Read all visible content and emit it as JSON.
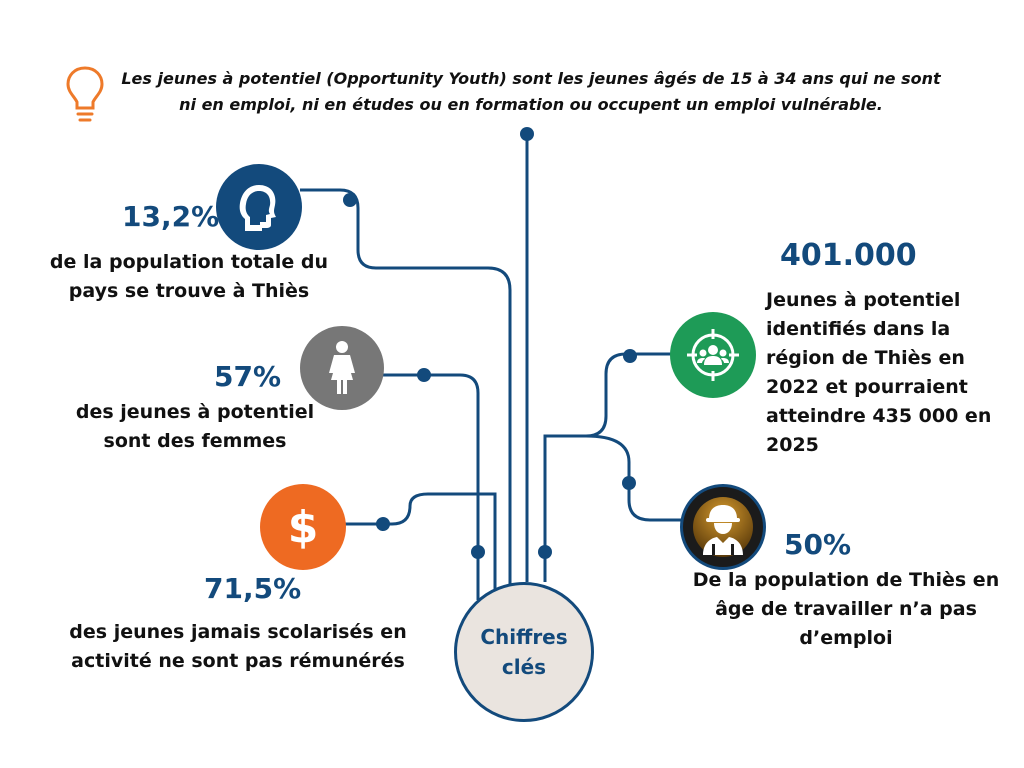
{
  "intro": {
    "text": "Les jeunes à potentiel (Opportunity Youth) sont les jeunes âgés de 15 à 34 ans qui ne sont ni en emploi, ni en études ou en formation ou occupent un emploi vulnérable."
  },
  "center": {
    "label": "Chiffres clés"
  },
  "stats": [
    {
      "value": "13,2%",
      "text": "de la population totale du pays se trouve à Thiès",
      "icon": "head-profile-icon",
      "color": "#134a7c"
    },
    {
      "value": "57%",
      "text": "des jeunes à potentiel sont des femmes",
      "icon": "woman-icon",
      "color": "#777777"
    },
    {
      "value": "71,5%",
      "text": "des jeunes jamais scolarisés en activité ne sont pas rémunérés",
      "icon": "dollar-icon",
      "color": "#ee6a22"
    },
    {
      "value": "401.000",
      "text": "Jeunes à potentiel identifiés dans la région de Thiès en 2022 et pourraient atteindre 435 000 en 2025",
      "icon": "target-group-icon",
      "color": "#1e9b57"
    },
    {
      "value": "50%",
      "text": "De la population de Thiès en âge de travailler n’a pas d’emploi",
      "icon": "worker-helmet-icon",
      "color": "#8a5a14"
    }
  ],
  "colors": {
    "line": "#134a7c",
    "bulb": "#ee7a2a"
  }
}
